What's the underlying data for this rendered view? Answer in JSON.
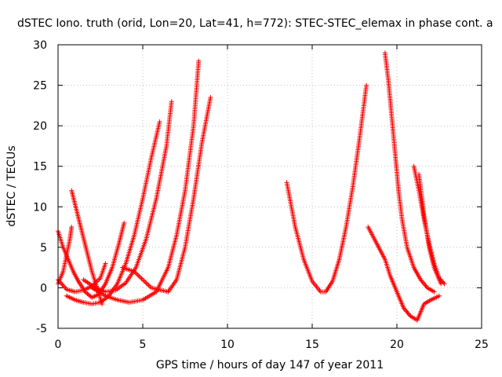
{
  "chart_data": {
    "type": "scatter",
    "title": "dSTEC Iono. truth (orid, Lon=20, Lat=41, h=772): STEC-STEC_elemax in phase cont. a",
    "xlabel": "GPS time / hours of day 147 of year 2011",
    "ylabel": "dSTEC  / TECUs",
    "xlim": [
      0,
      25
    ],
    "ylim": [
      -5,
      30
    ],
    "x_ticks": [
      "0",
      "5",
      "10",
      "15",
      "20",
      "25"
    ],
    "y_ticks": [
      "-5",
      "0",
      "5",
      "10",
      "15",
      "20",
      "25",
      "30"
    ],
    "grid": true,
    "marker": "plus",
    "colors": {
      "data": "#ff0000",
      "grid": "#a0a0a0",
      "axes": "#000000"
    },
    "series": [
      {
        "x": [
          0.0,
          0.3,
          0.6,
          0.9,
          1.2,
          1.6,
          2.0,
          2.4,
          2.8,
          3.2,
          3.6,
          3.9
        ],
        "y": [
          7.0,
          5.0,
          3.5,
          2.0,
          0.8,
          -0.5,
          -1.2,
          -0.8,
          0.5,
          2.5,
          5.5,
          8.0
        ]
      },
      {
        "x": [
          0.8,
          1.1,
          1.4,
          1.7,
          2.0,
          2.3,
          2.6
        ],
        "y": [
          12.0,
          9.5,
          7.0,
          4.5,
          2.0,
          0.0,
          -2.0
        ]
      },
      {
        "x": [
          0.0,
          0.3,
          0.5,
          0.7,
          0.8
        ],
        "y": [
          0.5,
          2.0,
          4.0,
          6.0,
          7.5
        ]
      },
      {
        "x": [
          0.0,
          0.5,
          1.0,
          1.5,
          2.0,
          2.5,
          2.8
        ],
        "y": [
          1.0,
          -0.2,
          -0.5,
          -0.3,
          0.2,
          1.2,
          3.0
        ]
      },
      {
        "x": [
          0.5,
          1.0,
          1.5,
          2.0,
          2.5,
          3.0,
          3.5,
          4.0,
          4.5,
          5.0,
          5.5,
          6.0
        ],
        "y": [
          -1.0,
          -1.5,
          -1.8,
          -2.0,
          -1.8,
          -1.0,
          0.5,
          3.0,
          6.5,
          11.0,
          16.0,
          20.5
        ]
      },
      {
        "x": [
          1.5,
          2.2,
          2.8,
          3.4,
          4.0,
          4.6,
          5.2,
          5.8,
          6.4,
          6.7
        ],
        "y": [
          1.0,
          0.0,
          -0.5,
          -0.3,
          0.6,
          2.5,
          6.0,
          11.0,
          17.5,
          23.0
        ]
      },
      {
        "x": [
          2.0,
          2.8,
          3.5,
          4.2,
          5.0,
          5.8,
          6.5,
          7.0,
          7.5,
          8.0,
          8.3
        ],
        "y": [
          0.0,
          -1.0,
          -1.5,
          -1.8,
          -1.5,
          -0.5,
          2.5,
          6.5,
          12.0,
          20.0,
          28.0
        ]
      },
      {
        "x": [
          3.8,
          4.5,
          5.5,
          6.5,
          7.0,
          7.5,
          8.0,
          8.5,
          9.0
        ],
        "y": [
          2.5,
          2.0,
          0.0,
          -0.5,
          1.0,
          5.0,
          11.0,
          18.0,
          23.5
        ]
      },
      {
        "x": [
          13.5,
          14.0,
          14.5,
          15.0,
          15.5,
          15.8,
          16.2,
          16.6,
          17.0,
          17.4,
          17.8,
          18.2
        ],
        "y": [
          13.0,
          7.5,
          3.5,
          0.8,
          -0.5,
          -0.5,
          0.8,
          3.5,
          7.5,
          12.5,
          18.5,
          25.0
        ]
      },
      {
        "x": [
          18.3,
          18.8,
          19.3,
          19.6,
          20.0,
          20.4,
          20.8,
          21.2,
          21.6,
          22.0,
          22.5
        ],
        "y": [
          7.5,
          5.5,
          3.5,
          1.5,
          -0.5,
          -2.5,
          -3.5,
          -4.0,
          -2.0,
          -1.5,
          -1.0
        ]
      },
      {
        "x": [
          19.3,
          19.5,
          19.7,
          19.9,
          20.1,
          20.3,
          20.6,
          21.0,
          21.4,
          21.8,
          22.2
        ],
        "y": [
          29.0,
          25.5,
          21.0,
          16.5,
          12.0,
          8.5,
          5.0,
          2.5,
          1.0,
          0.0,
          -0.5
        ]
      },
      {
        "x": [
          21.0,
          21.3,
          21.6,
          21.9,
          22.2,
          22.5,
          22.8
        ],
        "y": [
          15.0,
          12.0,
          8.5,
          5.5,
          3.0,
          1.2,
          0.5
        ]
      },
      {
        "x": [
          21.3,
          21.6,
          21.9,
          22.2,
          22.6
        ],
        "y": [
          14.0,
          9.0,
          5.0,
          2.5,
          0.5
        ]
      }
    ]
  }
}
